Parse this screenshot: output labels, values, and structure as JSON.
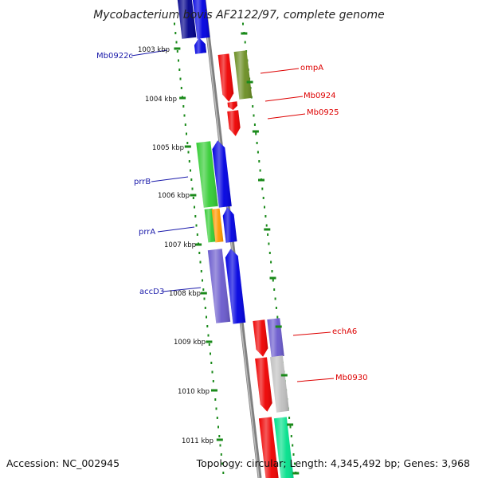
{
  "title": "Mycobacterium bovis AF2122/97, complete genome",
  "footer": {
    "accession": "Accession: NC_002945",
    "topology": "Topology: circular; Length: 4,345,492 bp; Genes: 3,968"
  },
  "scale_labels": [
    "1003 kbp",
    "1004 kbp",
    "1005 kbp",
    "1006 kbp",
    "1007 kbp",
    "1008 kbp",
    "1009 kbp",
    "1010 kbp",
    "1011 kbp"
  ],
  "left_labels": [
    "Mb0922c",
    "prrB",
    "prrA",
    "accD3"
  ],
  "right_labels": [
    "ompA",
    "Mb0924",
    "Mb0925",
    "echA6",
    "Mb0930"
  ],
  "colors": {
    "left_label": "#1a1aaa",
    "right_label": "#dd0000",
    "scale_dots": "#1a8a1a",
    "backbone": "#808080",
    "gene_blue": "#0000e0",
    "gene_navy": "#00008b",
    "gene_red": "#ee0000",
    "gene_green": "#33cc33",
    "gene_olive": "#6b8e23",
    "gene_orange": "#ff9900",
    "gene_slate": "#6a5acd",
    "gene_grey": "#c0c0c0",
    "gene_mint": "#00e08a"
  }
}
